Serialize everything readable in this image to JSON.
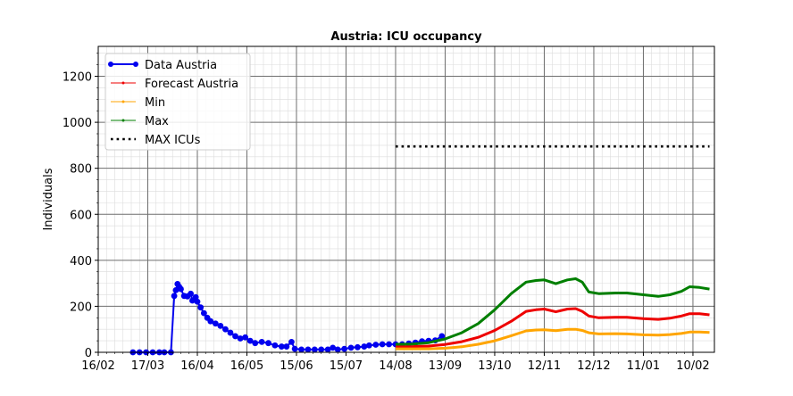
{
  "chart_data": {
    "type": "line",
    "title": "Austria: ICU occupancy",
    "xlabel": "",
    "ylabel": "Individuals",
    "year_start": "2020-02-16",
    "xlim": [
      "2020-02-16",
      "2021-02-23"
    ],
    "ylim": [
      0,
      1330
    ],
    "x_ticks": [
      "16/02",
      "17/03",
      "16/04",
      "16/05",
      "15/06",
      "15/07",
      "14/08",
      "13/09",
      "13/10",
      "12/11",
      "12/12",
      "11/01",
      "10/02"
    ],
    "y_ticks": [
      0,
      200,
      400,
      600,
      800,
      1000,
      1200
    ],
    "grid": true,
    "legend_position": "top-left",
    "legend": [
      "Data Austria",
      "Forecast Austria",
      "Min",
      "Max",
      "MAX ICUs"
    ],
    "series": [
      {
        "name": "Data Austria",
        "color": "#0000ee",
        "points": [
          [
            "2020-03-08",
            0
          ],
          [
            "2020-03-12",
            0
          ],
          [
            "2020-03-16",
            0
          ],
          [
            "2020-03-20",
            0
          ],
          [
            "2020-03-24",
            0
          ],
          [
            "2020-03-27",
            0
          ],
          [
            "2020-03-31",
            0
          ],
          [
            "2020-04-02",
            245
          ],
          [
            "2020-04-03",
            270
          ],
          [
            "2020-04-04",
            297
          ],
          [
            "2020-04-05",
            285
          ],
          [
            "2020-04-06",
            275
          ],
          [
            "2020-04-08",
            245
          ],
          [
            "2020-04-10",
            243
          ],
          [
            "2020-04-12",
            255
          ],
          [
            "2020-04-13",
            225
          ],
          [
            "2020-04-15",
            240
          ],
          [
            "2020-04-16",
            220
          ],
          [
            "2020-04-18",
            195
          ],
          [
            "2020-04-20",
            170
          ],
          [
            "2020-04-22",
            150
          ],
          [
            "2020-04-24",
            135
          ],
          [
            "2020-04-27",
            125
          ],
          [
            "2020-04-30",
            115
          ],
          [
            "2020-05-03",
            100
          ],
          [
            "2020-05-06",
            85
          ],
          [
            "2020-05-09",
            70
          ],
          [
            "2020-05-12",
            60
          ],
          [
            "2020-05-15",
            65
          ],
          [
            "2020-05-18",
            50
          ],
          [
            "2020-05-21",
            40
          ],
          [
            "2020-05-25",
            45
          ],
          [
            "2020-05-29",
            40
          ],
          [
            "2020-06-02",
            30
          ],
          [
            "2020-06-06",
            25
          ],
          [
            "2020-06-09",
            25
          ],
          [
            "2020-06-12",
            45
          ],
          [
            "2020-06-14",
            15
          ],
          [
            "2020-06-18",
            12
          ],
          [
            "2020-06-22",
            12
          ],
          [
            "2020-06-26",
            12
          ],
          [
            "2020-06-30",
            12
          ],
          [
            "2020-07-04",
            12
          ],
          [
            "2020-07-07",
            20
          ],
          [
            "2020-07-10",
            12
          ],
          [
            "2020-07-14",
            15
          ],
          [
            "2020-07-18",
            20
          ],
          [
            "2020-07-22",
            22
          ],
          [
            "2020-07-26",
            25
          ],
          [
            "2020-07-29",
            30
          ],
          [
            "2020-08-02",
            33
          ],
          [
            "2020-08-06",
            35
          ],
          [
            "2020-08-10",
            35
          ],
          [
            "2020-08-14",
            35
          ],
          [
            "2020-08-18",
            35
          ],
          [
            "2020-08-22",
            38
          ],
          [
            "2020-08-26",
            42
          ],
          [
            "2020-08-30",
            48
          ],
          [
            "2020-09-03",
            50
          ],
          [
            "2020-09-07",
            52
          ],
          [
            "2020-09-11",
            70
          ]
        ]
      },
      {
        "name": "Forecast Austria",
        "color": "#ee0000",
        "points": [
          [
            "2020-08-14",
            25
          ],
          [
            "2020-08-24",
            25
          ],
          [
            "2020-09-03",
            27
          ],
          [
            "2020-09-13",
            34
          ],
          [
            "2020-09-23",
            46
          ],
          [
            "2020-10-03",
            65
          ],
          [
            "2020-10-13",
            95
          ],
          [
            "2020-10-23",
            135
          ],
          [
            "2020-11-01",
            178
          ],
          [
            "2020-11-07",
            185
          ],
          [
            "2020-11-12",
            188
          ],
          [
            "2020-11-19",
            176
          ],
          [
            "2020-11-26",
            188
          ],
          [
            "2020-12-01",
            190
          ],
          [
            "2020-12-05",
            178
          ],
          [
            "2020-12-09",
            158
          ],
          [
            "2020-12-15",
            150
          ],
          [
            "2020-12-25",
            152
          ],
          [
            "2021-01-01",
            152
          ],
          [
            "2021-01-11",
            146
          ],
          [
            "2021-01-20",
            143
          ],
          [
            "2021-01-27",
            148
          ],
          [
            "2021-02-03",
            158
          ],
          [
            "2021-02-08",
            168
          ],
          [
            "2021-02-14",
            168
          ],
          [
            "2021-02-20",
            163
          ]
        ]
      },
      {
        "name": "Min",
        "color": "#ffa500",
        "points": [
          [
            "2020-08-14",
            15
          ],
          [
            "2020-08-24",
            15
          ],
          [
            "2020-09-03",
            15
          ],
          [
            "2020-09-13",
            18
          ],
          [
            "2020-09-23",
            24
          ],
          [
            "2020-10-03",
            35
          ],
          [
            "2020-10-13",
            50
          ],
          [
            "2020-10-23",
            72
          ],
          [
            "2020-11-01",
            93
          ],
          [
            "2020-11-07",
            97
          ],
          [
            "2020-11-12",
            98
          ],
          [
            "2020-11-19",
            94
          ],
          [
            "2020-11-26",
            100
          ],
          [
            "2020-12-01",
            100
          ],
          [
            "2020-12-05",
            95
          ],
          [
            "2020-12-09",
            85
          ],
          [
            "2020-12-15",
            80
          ],
          [
            "2020-12-25",
            81
          ],
          [
            "2021-01-01",
            80
          ],
          [
            "2021-01-11",
            76
          ],
          [
            "2021-01-20",
            75
          ],
          [
            "2021-01-27",
            77
          ],
          [
            "2021-02-03",
            82
          ],
          [
            "2021-02-08",
            88
          ],
          [
            "2021-02-14",
            88
          ],
          [
            "2021-02-20",
            86
          ]
        ]
      },
      {
        "name": "Max",
        "color": "#007f00",
        "points": [
          [
            "2020-08-14",
            35
          ],
          [
            "2020-08-24",
            36
          ],
          [
            "2020-09-03",
            42
          ],
          [
            "2020-09-13",
            58
          ],
          [
            "2020-09-23",
            85
          ],
          [
            "2020-10-03",
            125
          ],
          [
            "2020-10-13",
            185
          ],
          [
            "2020-10-23",
            255
          ],
          [
            "2020-11-01",
            305
          ],
          [
            "2020-11-07",
            312
          ],
          [
            "2020-11-12",
            315
          ],
          [
            "2020-11-19",
            298
          ],
          [
            "2020-11-26",
            315
          ],
          [
            "2020-12-01",
            320
          ],
          [
            "2020-12-05",
            305
          ],
          [
            "2020-12-09",
            262
          ],
          [
            "2020-12-15",
            255
          ],
          [
            "2020-12-25",
            258
          ],
          [
            "2021-01-01",
            258
          ],
          [
            "2021-01-11",
            250
          ],
          [
            "2021-01-20",
            243
          ],
          [
            "2021-01-27",
            250
          ],
          [
            "2021-02-03",
            265
          ],
          [
            "2021-02-08",
            285
          ],
          [
            "2021-02-14",
            282
          ],
          [
            "2021-02-20",
            275
          ]
        ]
      },
      {
        "name": "MAX ICUs",
        "color": "#000000",
        "style": "dotted",
        "points": [
          [
            "2020-08-14",
            895
          ],
          [
            "2021-02-20",
            895
          ]
        ]
      }
    ]
  }
}
